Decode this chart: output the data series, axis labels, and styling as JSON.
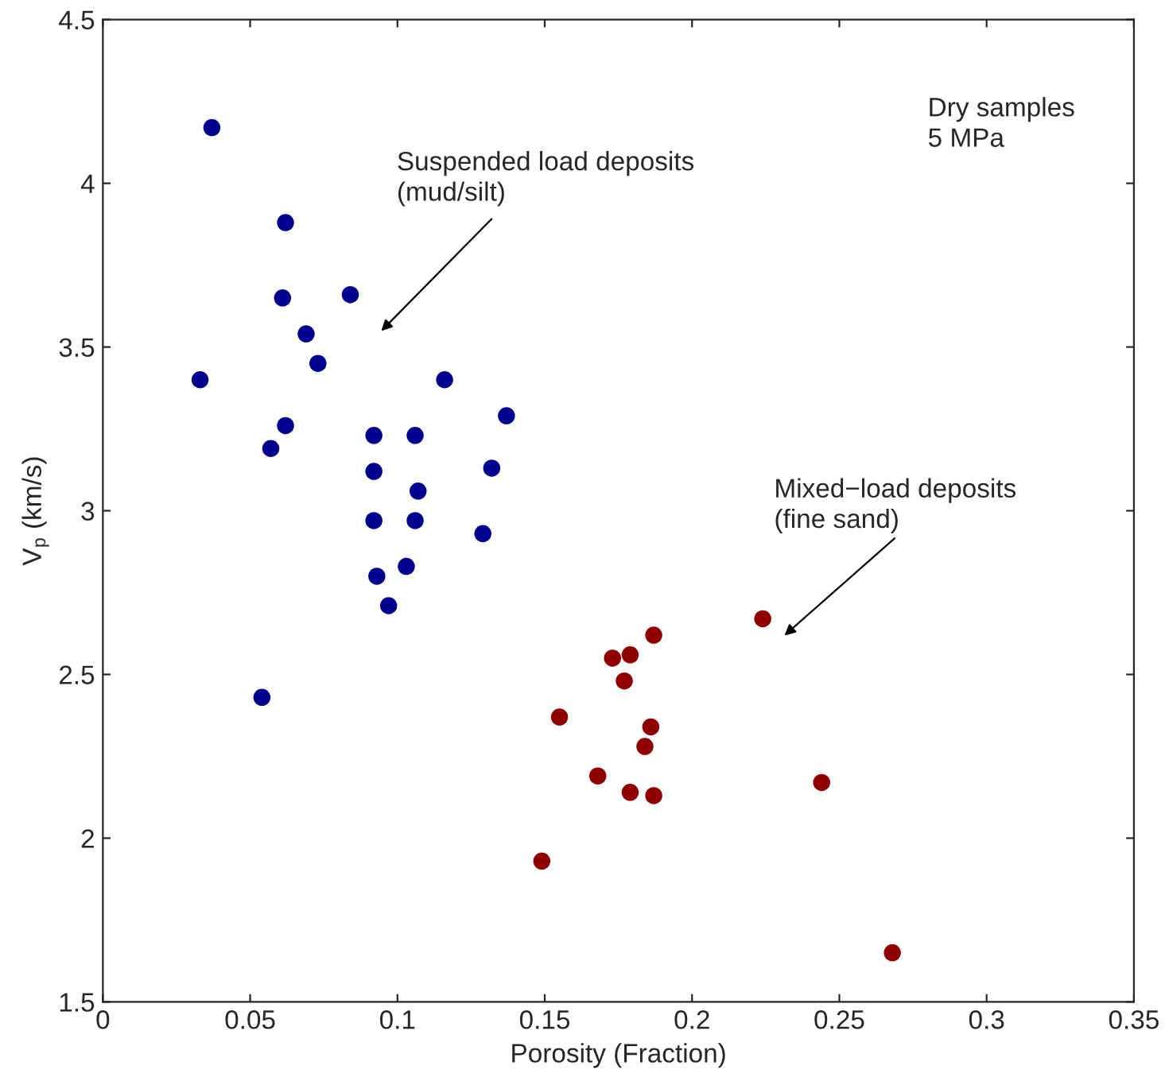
{
  "chart_data": {
    "type": "scatter",
    "xlabel": "Porosity (Fraction)",
    "ylabel": "V$_{p}$ (km/s)",
    "xlim": [
      0,
      0.35
    ],
    "ylim": [
      1.5,
      4.5
    ],
    "xticks": [
      0,
      0.05,
      0.1,
      0.15,
      0.2,
      0.25,
      0.3,
      0.35
    ],
    "yticks": [
      1.5,
      2,
      2.5,
      3,
      3.5,
      4,
      4.5
    ],
    "grid": false,
    "marker": "circle",
    "series": [
      {
        "color": "#00008f",
        "x": [
          0.037,
          0.062,
          0.061,
          0.084,
          0.069,
          0.073,
          0.033,
          0.116,
          0.137,
          0.062,
          0.057,
          0.092,
          0.106,
          0.092,
          0.132,
          0.107,
          0.092,
          0.106,
          0.129,
          0.103,
          0.093,
          0.097,
          0.054
        ],
        "values": [
          4.17,
          3.88,
          3.65,
          3.66,
          3.54,
          3.45,
          3.4,
          3.4,
          3.29,
          3.26,
          3.19,
          3.23,
          3.23,
          3.12,
          3.13,
          3.06,
          2.97,
          2.97,
          2.93,
          2.83,
          2.8,
          2.71,
          2.43
        ]
      },
      {
        "color": "#8f0000",
        "x": [
          0.224,
          0.187,
          0.173,
          0.179,
          0.177,
          0.155,
          0.186,
          0.184,
          0.168,
          0.179,
          0.187,
          0.244,
          0.149,
          0.268
        ],
        "values": [
          2.67,
          2.62,
          2.55,
          2.56,
          2.48,
          2.37,
          2.34,
          2.28,
          2.19,
          2.14,
          2.13,
          2.17,
          1.93,
          1.65
        ]
      }
    ],
    "annotations": [
      "Suspended load deposits\n(mud/silt)",
      "Mixed−load deposits\n(fine sand)",
      "Dry samples\n5 MPa"
    ]
  }
}
